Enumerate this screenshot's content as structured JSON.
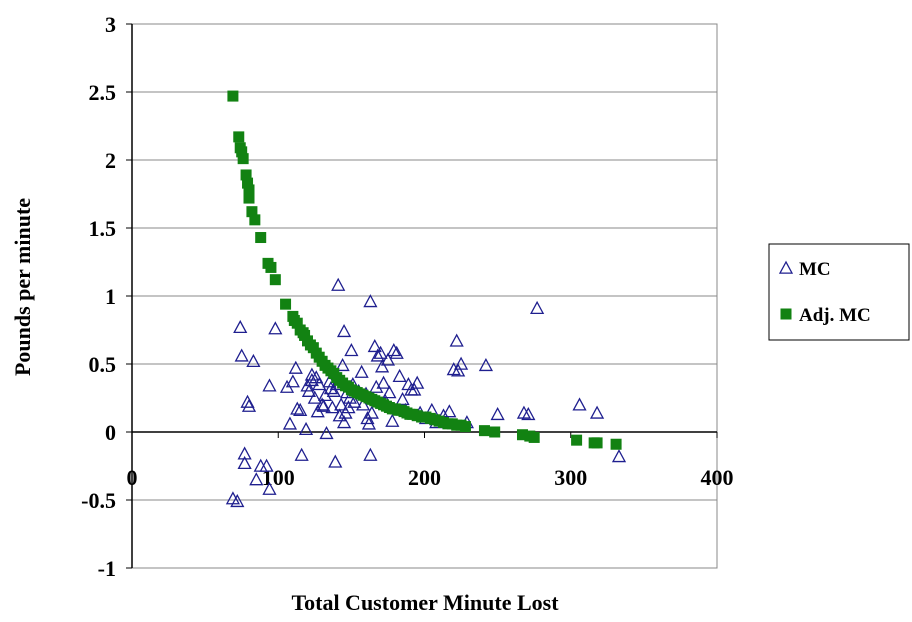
{
  "chart_data": {
    "type": "scatter",
    "title": "",
    "xlabel": "Total Customer Minute Lost",
    "ylabel": "Pounds per minute",
    "xlim": [
      0,
      400
    ],
    "ylim": [
      -1,
      3
    ],
    "x_ticks": [
      "0",
      "100",
      "200",
      "300",
      "400"
    ],
    "y_ticks": [
      "3",
      "2.5",
      "2",
      "1.5",
      "1",
      "0.5",
      "0",
      "-0.5",
      "-1"
    ],
    "grid": true,
    "legend_position": "right",
    "series": [
      {
        "name": "MC",
        "marker": "triangle-open",
        "color": "#1f1f8f",
        "points": [
          [
            69,
            -0.49
          ],
          [
            72,
            -0.51
          ],
          [
            74,
            0.77
          ],
          [
            75,
            0.56
          ],
          [
            77,
            -0.16
          ],
          [
            77,
            -0.23
          ],
          [
            79,
            0.22
          ],
          [
            80,
            0.19
          ],
          [
            83,
            0.52
          ],
          [
            85,
            -0.35
          ],
          [
            88,
            -0.25
          ],
          [
            92,
            -0.25
          ],
          [
            94,
            0.34
          ],
          [
            94,
            -0.42
          ],
          [
            98,
            0.76
          ],
          [
            106,
            0.33
          ],
          [
            108,
            0.06
          ],
          [
            110,
            0.37
          ],
          [
            112,
            0.47
          ],
          [
            113,
            0.17
          ],
          [
            115,
            0.16
          ],
          [
            116,
            -0.17
          ],
          [
            119,
            0.02
          ],
          [
            120,
            0.34
          ],
          [
            121,
            0.3
          ],
          [
            123,
            0.38
          ],
          [
            123,
            0.42
          ],
          [
            125,
            0.25
          ],
          [
            126,
            0.4
          ],
          [
            127,
            0.15
          ],
          [
            128,
            0.35
          ],
          [
            130,
            0.2
          ],
          [
            131,
            0.19
          ],
          [
            132,
            0.27
          ],
          [
            133,
            -0.01
          ],
          [
            135,
            0.37
          ],
          [
            136,
            0.32
          ],
          [
            137,
            0.18
          ],
          [
            138,
            0.3
          ],
          [
            139,
            -0.22
          ],
          [
            140,
            0.35
          ],
          [
            141,
            1.08
          ],
          [
            142,
            0.12
          ],
          [
            143,
            0.2
          ],
          [
            144,
            0.49
          ],
          [
            145,
            0.07
          ],
          [
            145,
            0.74
          ],
          [
            146,
            0.14
          ],
          [
            147,
            0.29
          ],
          [
            148,
            0.18
          ],
          [
            149,
            0.25
          ],
          [
            150,
            0.6
          ],
          [
            151,
            0.35
          ],
          [
            152,
            0.22
          ],
          [
            155,
            0.3
          ],
          [
            157,
            0.44
          ],
          [
            158,
            0.2
          ],
          [
            160,
            0.28
          ],
          [
            161,
            0.1
          ],
          [
            162,
            0.06
          ],
          [
            163,
            -0.17
          ],
          [
            163,
            0.96
          ],
          [
            164,
            0.14
          ],
          [
            166,
            0.63
          ],
          [
            167,
            0.33
          ],
          [
            168,
            0.56
          ],
          [
            170,
            0.58
          ],
          [
            171,
            0.48
          ],
          [
            172,
            0.36
          ],
          [
            173,
            0.23
          ],
          [
            175,
            0.53
          ],
          [
            176,
            0.29
          ],
          [
            178,
            0.08
          ],
          [
            179,
            0.6
          ],
          [
            181,
            0.58
          ],
          [
            183,
            0.41
          ],
          [
            185,
            0.24
          ],
          [
            187,
            0.16
          ],
          [
            189,
            0.35
          ],
          [
            191,
            0.31
          ],
          [
            193,
            0.31
          ],
          [
            195,
            0.36
          ],
          [
            197,
            0.14
          ],
          [
            201,
            0.1
          ],
          [
            205,
            0.16
          ],
          [
            208,
            0.07
          ],
          [
            213,
            0.12
          ],
          [
            217,
            0.15
          ],
          [
            220,
            0.46
          ],
          [
            222,
            0.67
          ],
          [
            223,
            0.45
          ],
          [
            225,
            0.5
          ],
          [
            229,
            0.07
          ],
          [
            242,
            0.49
          ],
          [
            250,
            0.13
          ],
          [
            268,
            0.14
          ],
          [
            271,
            0.13
          ],
          [
            277,
            0.91
          ],
          [
            306,
            0.2
          ],
          [
            318,
            0.14
          ],
          [
            333,
            -0.18
          ]
        ]
      },
      {
        "name": "Adj. MC",
        "marker": "square-filled",
        "color": "#128212",
        "points": [
          [
            69,
            2.47
          ],
          [
            73,
            2.17
          ],
          [
            74,
            2.09
          ],
          [
            75,
            2.06
          ],
          [
            76,
            2.01
          ],
          [
            78,
            1.89
          ],
          [
            79,
            1.83
          ],
          [
            80,
            1.78
          ],
          [
            80,
            1.72
          ],
          [
            82,
            1.62
          ],
          [
            84,
            1.56
          ],
          [
            88,
            1.43
          ],
          [
            93,
            1.24
          ],
          [
            95,
            1.21
          ],
          [
            98,
            1.12
          ],
          [
            105,
            0.94
          ],
          [
            110,
            0.85
          ],
          [
            111,
            0.82
          ],
          [
            113,
            0.8
          ],
          [
            115,
            0.75
          ],
          [
            117,
            0.73
          ],
          [
            118,
            0.71
          ],
          [
            120,
            0.67
          ],
          [
            122,
            0.64
          ],
          [
            124,
            0.62
          ],
          [
            126,
            0.58
          ],
          [
            128,
            0.55
          ],
          [
            130,
            0.52
          ],
          [
            132,
            0.49
          ],
          [
            134,
            0.47
          ],
          [
            136,
            0.45
          ],
          [
            138,
            0.43
          ],
          [
            140,
            0.4
          ],
          [
            142,
            0.38
          ],
          [
            144,
            0.36
          ],
          [
            146,
            0.34
          ],
          [
            148,
            0.33
          ],
          [
            150,
            0.31
          ],
          [
            152,
            0.3
          ],
          [
            154,
            0.29
          ],
          [
            156,
            0.28
          ],
          [
            158,
            0.27
          ],
          [
            160,
            0.26
          ],
          [
            162,
            0.25
          ],
          [
            164,
            0.24
          ],
          [
            166,
            0.23
          ],
          [
            168,
            0.22
          ],
          [
            170,
            0.21
          ],
          [
            172,
            0.2
          ],
          [
            174,
            0.19
          ],
          [
            176,
            0.18
          ],
          [
            178,
            0.17
          ],
          [
            180,
            0.17
          ],
          [
            182,
            0.16
          ],
          [
            184,
            0.16
          ],
          [
            186,
            0.15
          ],
          [
            188,
            0.14
          ],
          [
            190,
            0.13
          ],
          [
            192,
            0.13
          ],
          [
            195,
            0.12
          ],
          [
            198,
            0.11
          ],
          [
            201,
            0.11
          ],
          [
            204,
            0.1
          ],
          [
            207,
            0.09
          ],
          [
            210,
            0.08
          ],
          [
            213,
            0.07
          ],
          [
            216,
            0.06
          ],
          [
            219,
            0.06
          ],
          [
            222,
            0.05
          ],
          [
            225,
            0.05
          ],
          [
            228,
            0.04
          ],
          [
            241,
            0.01
          ],
          [
            248,
            0.0
          ],
          [
            267,
            -0.02
          ],
          [
            272,
            -0.03
          ],
          [
            275,
            -0.04
          ],
          [
            304,
            -0.06
          ],
          [
            316,
            -0.08
          ],
          [
            318,
            -0.08
          ],
          [
            331,
            -0.09
          ]
        ]
      }
    ]
  }
}
